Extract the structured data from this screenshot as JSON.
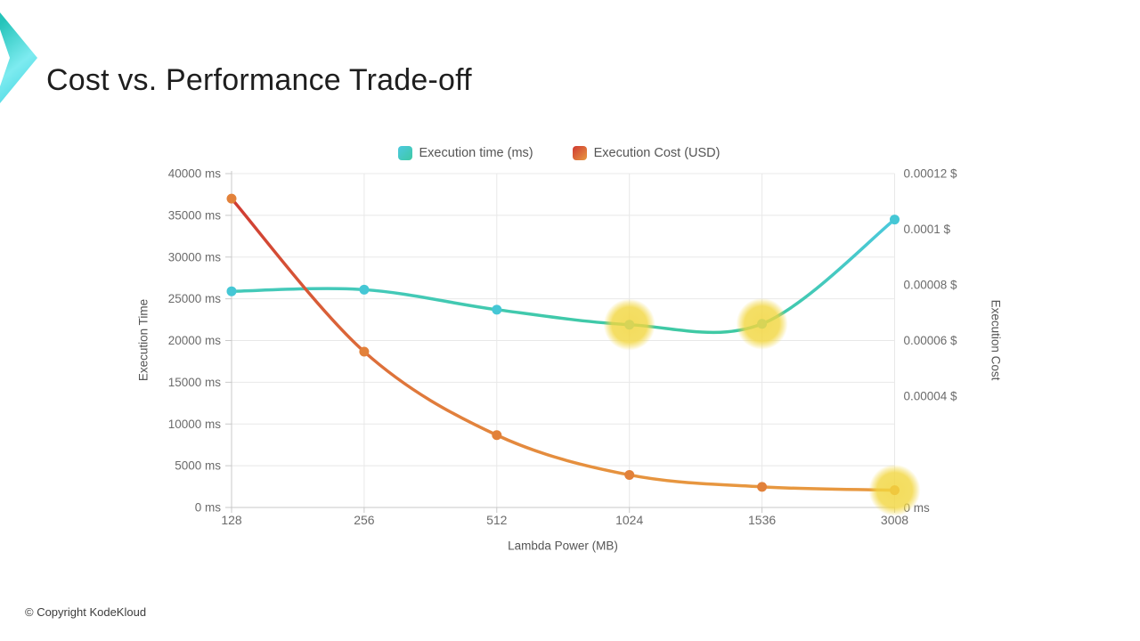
{
  "title": "Cost vs. Performance Trade-off",
  "footer": {
    "copyright": "© Copyright KodeKloud"
  },
  "logo": {
    "name": "kodekloud-chevron",
    "gradient": [
      "#25c4ba",
      "#7debf0",
      "#33cfdd"
    ]
  },
  "colors": {
    "grid": "#e8e8e8",
    "axis_line": "#c9c9c9",
    "tick_text": "#6b6b6b",
    "title_text": "#1e1e1e",
    "legend_text": "#555555",
    "highlight": "#f2d63f"
  },
  "chart_data": {
    "type": "line",
    "title": "",
    "xlabel": "Lambda Power (MB)",
    "categories": [
      "128",
      "256",
      "512",
      "1024",
      "1536",
      "3008"
    ],
    "legend_position": "top",
    "grid": true,
    "left_axis": {
      "title": "Execution Time",
      "min": 0,
      "max": 40000,
      "tick_step": 5000,
      "tick_labels": [
        "0 ms",
        "5000 ms",
        "10000 ms",
        "15000 ms",
        "20000 ms",
        "25000 ms",
        "30000 ms",
        "35000 ms",
        "40000 ms"
      ]
    },
    "right_axis": {
      "title": "Execution Cost",
      "min": 0,
      "max": 0.00012,
      "tick_labels": [
        {
          "value": 0.00012,
          "label": "0.00012 $"
        },
        {
          "value": 0.0001,
          "label": "0.0001 $"
        },
        {
          "value": 8e-05,
          "label": "0.00008 $"
        },
        {
          "value": 6e-05,
          "label": "0.00006 $"
        },
        {
          "value": 4e-05,
          "label": "0.00004 $"
        }
      ],
      "bottom_label": "0 ms"
    },
    "series": [
      {
        "name": "Execution time (ms)",
        "axis": "left",
        "values": [
          25900,
          26100,
          23700,
          21900,
          22000,
          34500
        ],
        "line_gradient": [
          "#4cc9e0",
          "#3fc9a4"
        ],
        "point_color": "#45c7d5"
      },
      {
        "name": "Execution Cost (USD)",
        "axis": "right",
        "values": [
          0.000111,
          5.6e-05,
          2.6e-05,
          1.17e-05,
          7.4e-06,
          6.2e-06
        ],
        "line_gradient": [
          "#cf3832",
          "#e89a40"
        ],
        "point_color": "#e2813a"
      }
    ],
    "highlights": [
      {
        "series": 0,
        "index": 3
      },
      {
        "series": 0,
        "index": 4
      },
      {
        "series": 1,
        "index": 5
      }
    ]
  }
}
